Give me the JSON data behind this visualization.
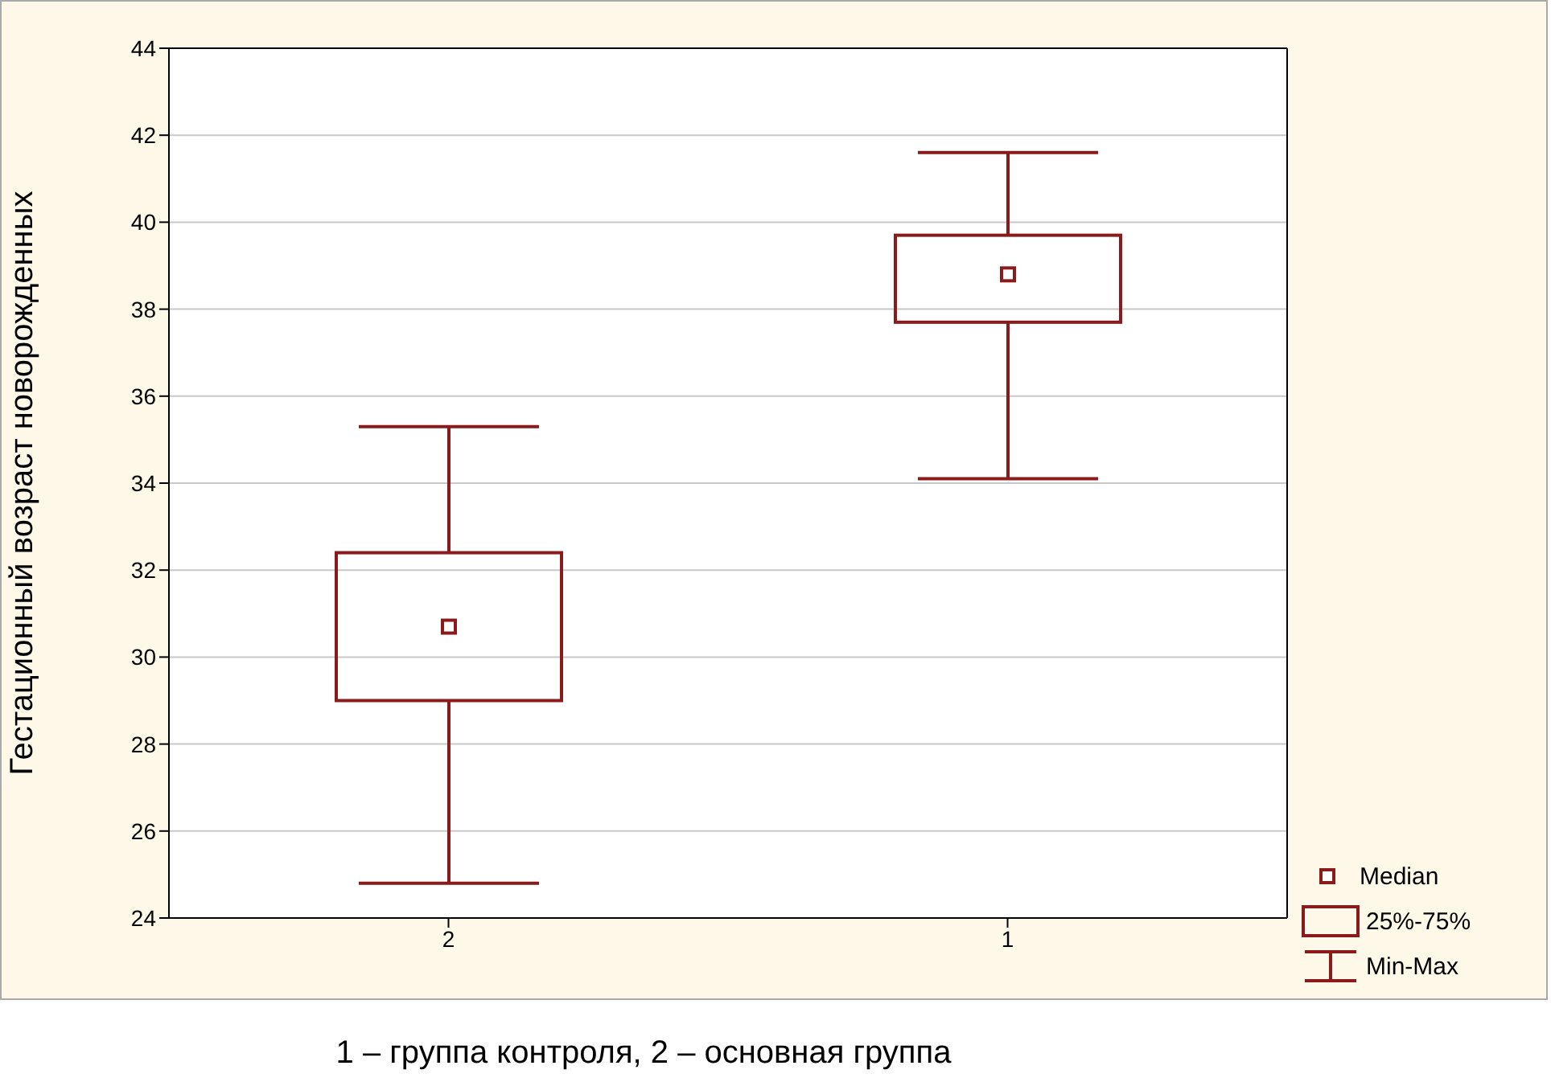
{
  "chart_data": {
    "type": "box",
    "ylabel": "Гестационный возраст новорожденных",
    "categories": [
      "2",
      "1"
    ],
    "boxes": [
      {
        "low": 24.8,
        "q1": 29.0,
        "median": 30.7,
        "q3": 32.4,
        "high": 35.3
      },
      {
        "low": 34.1,
        "q1": 37.7,
        "median": 38.8,
        "q3": 39.7,
        "high": 41.6
      }
    ],
    "color": "#8b1a1a",
    "ylim": [
      24,
      44
    ],
    "yticks": [
      24,
      26,
      28,
      30,
      32,
      34,
      36,
      38,
      40,
      42,
      44
    ],
    "grid": "y",
    "annotations": [
      "1 – группа контроля, 2 – основная группа",
      "Median",
      "25%-75%",
      "Min-Max"
    ]
  }
}
